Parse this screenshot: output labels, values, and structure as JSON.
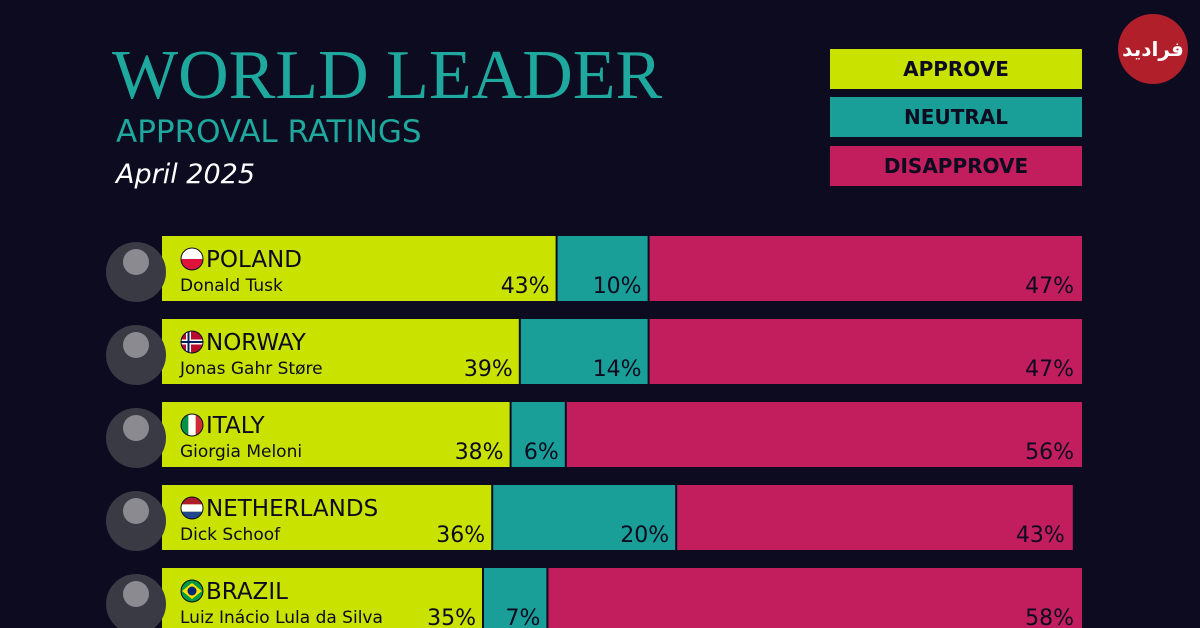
{
  "header": {
    "title": "WORLD LEADER",
    "subtitle": "APPROVAL RATINGS",
    "date": "April 2025"
  },
  "logo": {
    "text": "فرادید"
  },
  "legend": [
    {
      "label": "APPROVE",
      "color": "#c9e200"
    },
    {
      "label": "NEUTRAL",
      "color": "#1a9e98"
    },
    {
      "label": "DISAPPROVE",
      "color": "#c21d5c"
    }
  ],
  "chart_data": {
    "type": "bar",
    "stacked": true,
    "orientation": "horizontal",
    "categories": [
      "POLAND",
      "NORWAY",
      "ITALY",
      "NETHERLANDS",
      "BRAZIL"
    ],
    "leaders": [
      "Donald Tusk",
      "Jonas Gahr Støre",
      "Giorgia Meloni",
      "Dick Schoof",
      "Luiz Inácio Lula da Silva"
    ],
    "series": [
      {
        "name": "APPROVE",
        "values": [
          43,
          39,
          38,
          36,
          35
        ],
        "labels": [
          "43%",
          "39%",
          "38%",
          "36%",
          "35%"
        ],
        "color": "#c9e200"
      },
      {
        "name": "NEUTRAL",
        "values": [
          10,
          14,
          6,
          20,
          7
        ],
        "labels": [
          "10%",
          "14%",
          "6%",
          "20%",
          "7%"
        ],
        "color": "#1a9e98"
      },
      {
        "name": "DISAPPROVE",
        "values": [
          47,
          47,
          56,
          43,
          58
        ],
        "labels": [
          "47%",
          "47%",
          "56%",
          "43%",
          "58%"
        ],
        "color": "#c21d5c"
      }
    ],
    "xlim": [
      0,
      100
    ],
    "legend_position": "top-right"
  }
}
